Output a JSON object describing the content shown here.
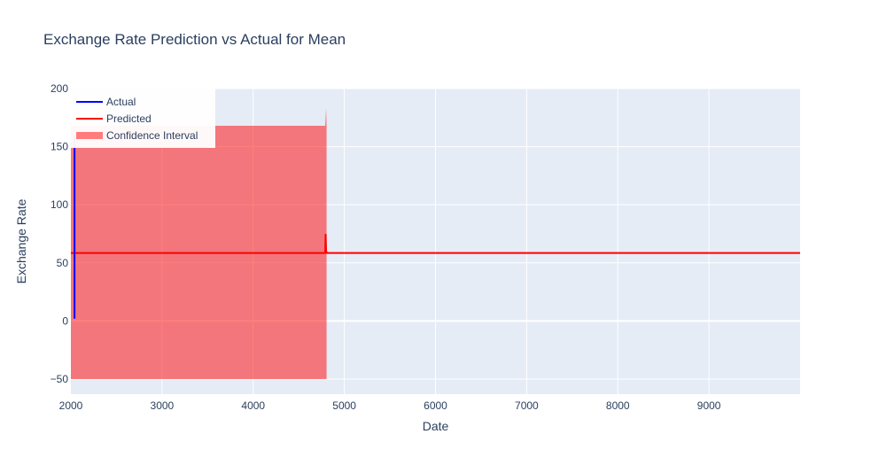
{
  "chart_data": {
    "type": "line",
    "title": "Exchange Rate Prediction vs Actual for Mean",
    "xlabel": "Date",
    "ylabel": "Exchange Rate",
    "xlim": [
      2000,
      10000
    ],
    "ylim": [
      -63,
      200
    ],
    "x_ticks": [
      2000,
      3000,
      4000,
      5000,
      6000,
      7000,
      8000,
      9000
    ],
    "y_ticks": [
      -50,
      0,
      50,
      100,
      150,
      200
    ],
    "grid": true,
    "legend_position": "top-left",
    "background_color": "#e5ecf6",
    "series": [
      {
        "name": "Actual",
        "color": "#0000ff",
        "x": [
          2040,
          2040
        ],
        "y": [
          2,
          160
        ]
      },
      {
        "name": "Predicted",
        "color": "#ff0000",
        "x": [
          2000,
          2040,
          4500,
          4790,
          4795,
          4800,
          4810,
          10000
        ],
        "y": [
          58.5,
          58.5,
          58.5,
          58.5,
          75,
          60,
          58.5,
          58.5
        ]
      },
      {
        "name": "Confidence Interval",
        "color": "#ff0000",
        "opacity": 0.5,
        "type": "band",
        "x": [
          2000,
          4780,
          4790,
          4800,
          4805
        ],
        "upper": [
          168,
          168,
          168,
          183,
          168
        ],
        "lower": [
          -50,
          -50,
          -50,
          -50,
          -50
        ]
      }
    ]
  }
}
